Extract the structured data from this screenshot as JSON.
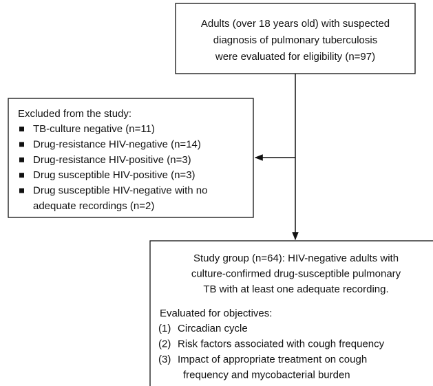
{
  "top_box": {
    "lines": [
      "Adults (over 18 years old) with suspected",
      "diagnosis of pulmonary tuberculosis",
      "were evaluated for eligibility (n=97)"
    ]
  },
  "excluded_box": {
    "title": "Excluded from the study:",
    "items": [
      [
        "TB-culture negative (n=11)"
      ],
      [
        "Drug-resistance HIV-negative (n=14)"
      ],
      [
        "Drug-resistance HIV-positive  (n=3)"
      ],
      [
        "Drug susceptible HIV-positive (n=3)"
      ],
      [
        "Drug susceptible HIV-negative with no",
        "adequate recordings (n=2)"
      ]
    ]
  },
  "study_box": {
    "lines": [
      "Study group (n=64): HIV-negative adults with",
      "culture-confirmed drug-susceptible pulmonary",
      "TB with at least one adequate recording."
    ],
    "objectives_title": "Evaluated for objectives:",
    "objectives": [
      {
        "number": "(1)",
        "lines": [
          "Circadian cycle"
        ]
      },
      {
        "number": "(2)",
        "lines": [
          "Risk factors associated with cough frequency"
        ]
      },
      {
        "number": "(3)",
        "lines": [
          "Impact of appropriate treatment on cough",
          "frequency and mycobacterial burden"
        ]
      }
    ]
  }
}
